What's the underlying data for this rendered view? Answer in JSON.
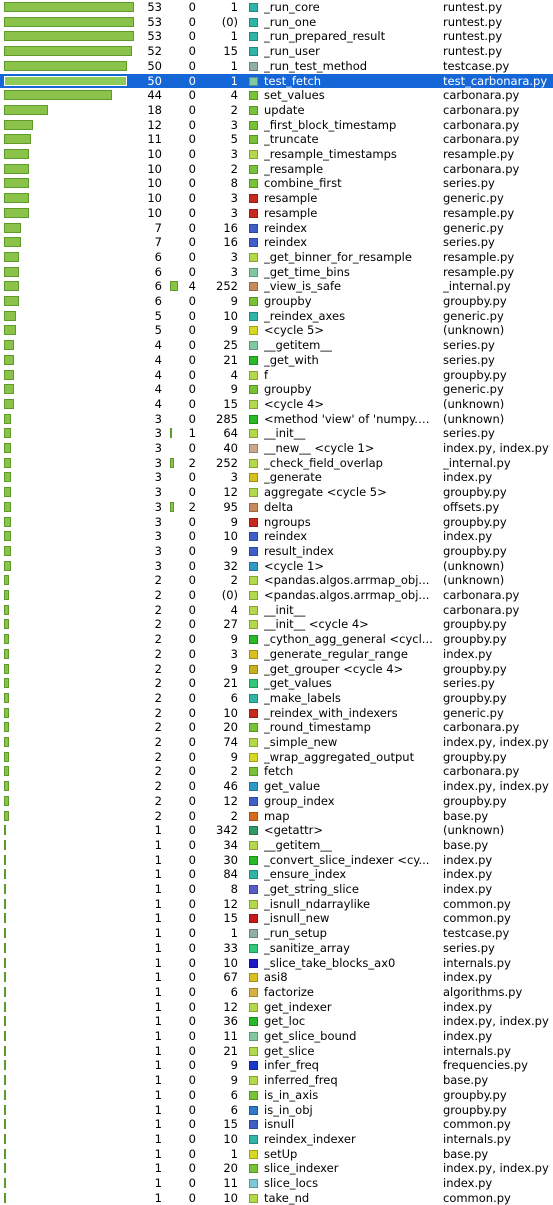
{
  "colors": {
    "selection": "#1566d6",
    "bar_fill": "#8bc34a",
    "bar_border": "#5e9a2c"
  },
  "bar_max_value": 53,
  "selected_index": 5,
  "rows": [
    {
      "v1": "53",
      "v2": "0",
      "v3": "1",
      "name": "_run_core",
      "file": "runtest.py",
      "color": "#2fb5a8",
      "v2bar": 0
    },
    {
      "v1": "53",
      "v2": "0",
      "v3": "(0)",
      "name": "_run_one",
      "file": "runtest.py",
      "color": "#2fb5a8",
      "v2bar": 0
    },
    {
      "v1": "53",
      "v2": "0",
      "v3": "1",
      "name": "_run_prepared_result",
      "file": "runtest.py",
      "color": "#2fb5a8",
      "v2bar": 0
    },
    {
      "v1": "52",
      "v2": "0",
      "v3": "15",
      "name": "_run_user",
      "file": "runtest.py",
      "color": "#2fb5a8",
      "v2bar": 0
    },
    {
      "v1": "50",
      "v2": "0",
      "v3": "1",
      "name": "_run_test_method",
      "file": "testcase.py",
      "color": "#8fb0a3",
      "v2bar": 0
    },
    {
      "v1": "50",
      "v2": "0",
      "v3": "1",
      "name": "test_fetch",
      "file": "test_carbonara.py",
      "color": "#7fc8a0",
      "v2bar": 0
    },
    {
      "v1": "44",
      "v2": "0",
      "v3": "4",
      "name": "set_values",
      "file": "carbonara.py",
      "color": "#78c23a",
      "v2bar": 0
    },
    {
      "v1": "18",
      "v2": "0",
      "v3": "2",
      "name": "update",
      "file": "carbonara.py",
      "color": "#78c23a",
      "v2bar": 0
    },
    {
      "v1": "12",
      "v2": "0",
      "v3": "3",
      "name": "_first_block_timestamp",
      "file": "carbonara.py",
      "color": "#78c23a",
      "v2bar": 0
    },
    {
      "v1": "11",
      "v2": "0",
      "v3": "5",
      "name": "_truncate",
      "file": "carbonara.py",
      "color": "#78c23a",
      "v2bar": 0
    },
    {
      "v1": "10",
      "v2": "0",
      "v3": "3",
      "name": "_resample_timestamps",
      "file": "resample.py",
      "color": "#b4d84c",
      "v2bar": 0
    },
    {
      "v1": "10",
      "v2": "0",
      "v3": "2",
      "name": "_resample",
      "file": "carbonara.py",
      "color": "#78c23a",
      "v2bar": 0
    },
    {
      "v1": "10",
      "v2": "0",
      "v3": "8",
      "name": "combine_first",
      "file": "series.py",
      "color": "#78c23a",
      "v2bar": 0
    },
    {
      "v1": "10",
      "v2": "0",
      "v3": "3",
      "name": "resample",
      "file": "generic.py",
      "color": "#c62a1e",
      "v2bar": 0
    },
    {
      "v1": "10",
      "v2": "0",
      "v3": "3",
      "name": "resample",
      "file": "resample.py",
      "color": "#c62a1e",
      "v2bar": 0
    },
    {
      "v1": "7",
      "v2": "0",
      "v3": "16",
      "name": "reindex",
      "file": "generic.py",
      "color": "#3f5fc8",
      "v2bar": 0
    },
    {
      "v1": "7",
      "v2": "0",
      "v3": "16",
      "name": "reindex",
      "file": "series.py",
      "color": "#3f5fc8",
      "v2bar": 0
    },
    {
      "v1": "6",
      "v2": "0",
      "v3": "3",
      "name": "_get_binner_for_resample",
      "file": "resample.py",
      "color": "#b4d84c",
      "v2bar": 0
    },
    {
      "v1": "6",
      "v2": "0",
      "v3": "3",
      "name": "_get_time_bins",
      "file": "resample.py",
      "color": "#7fc8a0",
      "v2bar": 0
    },
    {
      "v1": "6",
      "v2": "4",
      "v3": "252",
      "name": "_view_is_safe",
      "file": "_internal.py",
      "color": "#c88a5a",
      "v2bar": 4
    },
    {
      "v1": "6",
      "v2": "0",
      "v3": "9",
      "name": "groupby",
      "file": "groupby.py",
      "color": "#78c23a",
      "v2bar": 0
    },
    {
      "v1": "5",
      "v2": "0",
      "v3": "10",
      "name": "_reindex_axes",
      "file": "generic.py",
      "color": "#2fb5a8",
      "v2bar": 0
    },
    {
      "v1": "5",
      "v2": "0",
      "v3": "9",
      "name": "<cycle 5>",
      "file": "(unknown)",
      "color": "#d8d820",
      "v2bar": 0
    },
    {
      "v1": "4",
      "v2": "0",
      "v3": "25",
      "name": "__getitem__",
      "file": "series.py",
      "color": "#7fc8a0",
      "v2bar": 0
    },
    {
      "v1": "4",
      "v2": "0",
      "v3": "21",
      "name": "_get_with",
      "file": "series.py",
      "color": "#28b828",
      "v2bar": 0
    },
    {
      "v1": "4",
      "v2": "0",
      "v3": "4",
      "name": "f",
      "file": "groupby.py",
      "color": "#b4d84c",
      "v2bar": 0
    },
    {
      "v1": "4",
      "v2": "0",
      "v3": "9",
      "name": "groupby",
      "file": "generic.py",
      "color": "#78c23a",
      "v2bar": 0
    },
    {
      "v1": "4",
      "v2": "0",
      "v3": "15",
      "name": "<cycle 4>",
      "file": "(unknown)",
      "color": "#b4d84c",
      "v2bar": 0
    },
    {
      "v1": "3",
      "v2": "0",
      "v3": "285",
      "name": "<method 'view' of 'numpy.n...",
      "file": "(unknown)",
      "color": "#28b828",
      "v2bar": 0
    },
    {
      "v1": "3",
      "v2": "1",
      "v3": "64",
      "name": "__init__",
      "file": "series.py",
      "color": "#b4d84c",
      "v2bar": 1
    },
    {
      "v1": "3",
      "v2": "0",
      "v3": "40",
      "name": "__new__ <cycle 1>",
      "file": "index.py, index.py",
      "color": "#c8a890",
      "v2bar": 0
    },
    {
      "v1": "3",
      "v2": "2",
      "v3": "252",
      "name": "_check_field_overlap",
      "file": "_internal.py",
      "color": "#b4d84c",
      "v2bar": 2
    },
    {
      "v1": "3",
      "v2": "0",
      "v3": "3",
      "name": "_generate",
      "file": "index.py",
      "color": "#d8c020",
      "v2bar": 0
    },
    {
      "v1": "3",
      "v2": "0",
      "v3": "12",
      "name": "aggregate <cycle 5>",
      "file": "groupby.py",
      "color": "#b4d84c",
      "v2bar": 0
    },
    {
      "v1": "3",
      "v2": "2",
      "v3": "95",
      "name": "delta",
      "file": "offsets.py",
      "color": "#c88a5a",
      "v2bar": 2
    },
    {
      "v1": "3",
      "v2": "0",
      "v3": "9",
      "name": "ngroups",
      "file": "groupby.py",
      "color": "#c62a1e",
      "v2bar": 0
    },
    {
      "v1": "3",
      "v2": "0",
      "v3": "10",
      "name": "reindex",
      "file": "index.py",
      "color": "#3f5fc8",
      "v2bar": 0
    },
    {
      "v1": "3",
      "v2": "0",
      "v3": "9",
      "name": "result_index",
      "file": "groupby.py",
      "color": "#3f5fc8",
      "v2bar": 0
    },
    {
      "v1": "3",
      "v2": "0",
      "v3": "32",
      "name": "<cycle 1>",
      "file": "(unknown)",
      "color": "#2f9ac8",
      "v2bar": 0
    },
    {
      "v1": "2",
      "v2": "0",
      "v3": "2",
      "name": "<pandas.algos.arrmap_obj...",
      "file": "(unknown)",
      "color": "#b4d84c",
      "v2bar": 0
    },
    {
      "v1": "2",
      "v2": "0",
      "v3": "(0)",
      "name": "<pandas.algos.arrmap_obj...",
      "file": "carbonara.py",
      "color": "#b4d84c",
      "v2bar": 0
    },
    {
      "v1": "2",
      "v2": "0",
      "v3": "4",
      "name": "__init__",
      "file": "carbonara.py",
      "color": "#b4d84c",
      "v2bar": 0
    },
    {
      "v1": "2",
      "v2": "0",
      "v3": "27",
      "name": "__init__ <cycle 4>",
      "file": "groupby.py",
      "color": "#b4d84c",
      "v2bar": 0
    },
    {
      "v1": "2",
      "v2": "0",
      "v3": "9",
      "name": "_cython_agg_general <cycl...",
      "file": "groupby.py",
      "color": "#28b828",
      "v2bar": 0
    },
    {
      "v1": "2",
      "v2": "0",
      "v3": "3",
      "name": "_generate_regular_range",
      "file": "index.py",
      "color": "#d8c020",
      "v2bar": 0
    },
    {
      "v1": "2",
      "v2": "0",
      "v3": "9",
      "name": "_get_grouper <cycle 4>",
      "file": "groupby.py",
      "color": "#c8b020",
      "v2bar": 0
    },
    {
      "v1": "2",
      "v2": "0",
      "v3": "21",
      "name": "_get_values",
      "file": "series.py",
      "color": "#2fc878",
      "v2bar": 0
    },
    {
      "v1": "2",
      "v2": "0",
      "v3": "6",
      "name": "_make_labels",
      "file": "groupby.py",
      "color": "#2fb5a8",
      "v2bar": 0
    },
    {
      "v1": "2",
      "v2": "0",
      "v3": "10",
      "name": "_reindex_with_indexers",
      "file": "generic.py",
      "color": "#c62a1e",
      "v2bar": 0
    },
    {
      "v1": "2",
      "v2": "0",
      "v3": "20",
      "name": "_round_timestamp",
      "file": "carbonara.py",
      "color": "#78c23a",
      "v2bar": 0
    },
    {
      "v1": "2",
      "v2": "0",
      "v3": "74",
      "name": "_simple_new",
      "file": "index.py, index.py",
      "color": "#b4d84c",
      "v2bar": 0
    },
    {
      "v1": "2",
      "v2": "0",
      "v3": "9",
      "name": "_wrap_aggregated_output",
      "file": "groupby.py",
      "color": "#d8d820",
      "v2bar": 0
    },
    {
      "v1": "2",
      "v2": "0",
      "v3": "2",
      "name": "fetch",
      "file": "carbonara.py",
      "color": "#78c23a",
      "v2bar": 0
    },
    {
      "v1": "2",
      "v2": "0",
      "v3": "46",
      "name": "get_value",
      "file": "index.py, index.py",
      "color": "#2f9ac8",
      "v2bar": 0
    },
    {
      "v1": "2",
      "v2": "0",
      "v3": "12",
      "name": "group_index",
      "file": "groupby.py",
      "color": "#3f5fc8",
      "v2bar": 0
    },
    {
      "v1": "2",
      "v2": "0",
      "v3": "2",
      "name": "map",
      "file": "base.py",
      "color": "#d86a20",
      "v2bar": 0
    },
    {
      "v1": "1",
      "v2": "0",
      "v3": "342",
      "name": "<getattr>",
      "file": "(unknown)",
      "color": "#2f9a68",
      "v2bar": 0
    },
    {
      "v1": "1",
      "v2": "0",
      "v3": "34",
      "name": "__getitem__",
      "file": "base.py",
      "color": "#b4d84c",
      "v2bar": 0
    },
    {
      "v1": "1",
      "v2": "0",
      "v3": "30",
      "name": "_convert_slice_indexer <cy...",
      "file": "index.py",
      "color": "#28b828",
      "v2bar": 0
    },
    {
      "v1": "1",
      "v2": "0",
      "v3": "84",
      "name": "_ensure_index",
      "file": "index.py",
      "color": "#2fb5a8",
      "v2bar": 0
    },
    {
      "v1": "1",
      "v2": "0",
      "v3": "8",
      "name": "_get_string_slice",
      "file": "index.py",
      "color": "#5a5ac8",
      "v2bar": 0
    },
    {
      "v1": "1",
      "v2": "0",
      "v3": "12",
      "name": "_isnull_ndarraylike",
      "file": "common.py",
      "color": "#b4d84c",
      "v2bar": 0
    },
    {
      "v1": "1",
      "v2": "0",
      "v3": "15",
      "name": "_isnull_new",
      "file": "common.py",
      "color": "#c61a1a",
      "v2bar": 0
    },
    {
      "v1": "1",
      "v2": "0",
      "v3": "1",
      "name": "_run_setup",
      "file": "testcase.py",
      "color": "#8fb0a3",
      "v2bar": 0
    },
    {
      "v1": "1",
      "v2": "0",
      "v3": "33",
      "name": "_sanitize_array",
      "file": "series.py",
      "color": "#2fc878",
      "v2bar": 0
    },
    {
      "v1": "1",
      "v2": "0",
      "v3": "10",
      "name": "_slice_take_blocks_ax0",
      "file": "internals.py",
      "color": "#1a1ac8",
      "v2bar": 0
    },
    {
      "v1": "1",
      "v2": "0",
      "v3": "67",
      "name": "asi8",
      "file": "index.py",
      "color": "#d8c020",
      "v2bar": 0
    },
    {
      "v1": "1",
      "v2": "0",
      "v3": "6",
      "name": "factorize",
      "file": "algorithms.py",
      "color": "#d8b040",
      "v2bar": 0
    },
    {
      "v1": "1",
      "v2": "0",
      "v3": "12",
      "name": "get_indexer",
      "file": "index.py",
      "color": "#b4d84c",
      "v2bar": 0
    },
    {
      "v1": "1",
      "v2": "0",
      "v3": "36",
      "name": "get_loc",
      "file": "index.py, index.py",
      "color": "#28b828",
      "v2bar": 0
    },
    {
      "v1": "1",
      "v2": "0",
      "v3": "11",
      "name": "get_slice_bound",
      "file": "index.py",
      "color": "#7fc8a0",
      "v2bar": 0
    },
    {
      "v1": "1",
      "v2": "0",
      "v3": "21",
      "name": "get_slice",
      "file": "internals.py",
      "color": "#b4d84c",
      "v2bar": 0
    },
    {
      "v1": "1",
      "v2": "0",
      "v3": "9",
      "name": "infer_freq",
      "file": "frequencies.py",
      "color": "#1a3ac8",
      "v2bar": 0
    },
    {
      "v1": "1",
      "v2": "0",
      "v3": "9",
      "name": "inferred_freq",
      "file": "base.py",
      "color": "#b4d84c",
      "v2bar": 0
    },
    {
      "v1": "1",
      "v2": "0",
      "v3": "6",
      "name": "is_in_axis",
      "file": "groupby.py",
      "color": "#78c23a",
      "v2bar": 0
    },
    {
      "v1": "1",
      "v2": "0",
      "v3": "6",
      "name": "is_in_obj",
      "file": "groupby.py",
      "color": "#2f7ac8",
      "v2bar": 0
    },
    {
      "v1": "1",
      "v2": "0",
      "v3": "15",
      "name": "isnull",
      "file": "common.py",
      "color": "#3f5fc8",
      "v2bar": 0
    },
    {
      "v1": "1",
      "v2": "0",
      "v3": "10",
      "name": "reindex_indexer",
      "file": "internals.py",
      "color": "#2fb5a8",
      "v2bar": 0
    },
    {
      "v1": "1",
      "v2": "0",
      "v3": "1",
      "name": "setUp",
      "file": "base.py",
      "color": "#d8d820",
      "v2bar": 0
    },
    {
      "v1": "1",
      "v2": "0",
      "v3": "20",
      "name": "slice_indexer",
      "file": "index.py, index.py",
      "color": "#78c23a",
      "v2bar": 0
    },
    {
      "v1": "1",
      "v2": "0",
      "v3": "11",
      "name": "slice_locs",
      "file": "index.py",
      "color": "#7fc8d8",
      "v2bar": 0
    },
    {
      "v1": "1",
      "v2": "0",
      "v3": "10",
      "name": "take_nd",
      "file": "common.py",
      "color": "#b4d84c",
      "v2bar": 0
    }
  ]
}
